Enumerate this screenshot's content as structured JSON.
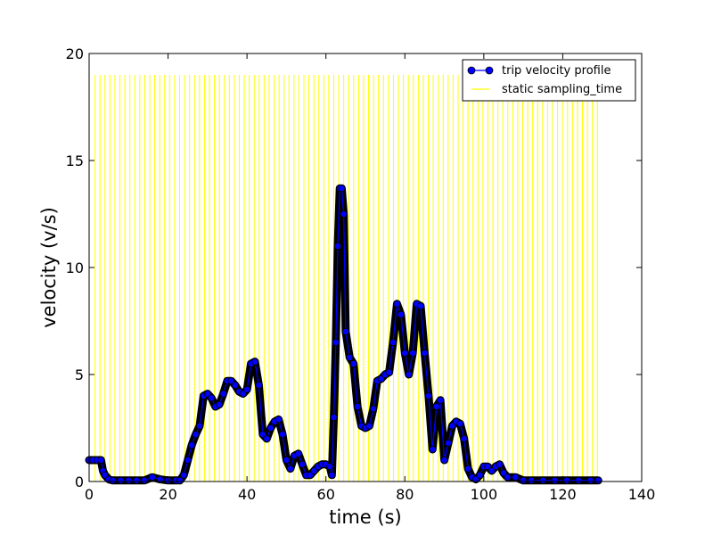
{
  "chart_data": {
    "type": "line",
    "title": "",
    "xlabel": "time (s)",
    "ylabel": "velocity (v/s)",
    "xlim": [
      0,
      140
    ],
    "ylim": [
      0,
      20
    ],
    "xticks": [
      0,
      20,
      40,
      60,
      80,
      100,
      120,
      140
    ],
    "yticks": [
      0,
      5,
      10,
      15,
      20
    ],
    "grid": false,
    "legend_position": "top-right",
    "series": [
      {
        "name": "trip velocity profile",
        "style": "line-with-circle-markers",
        "color": "#0000ff",
        "edge_color": "#000000",
        "points": [
          [
            0,
            1.0
          ],
          [
            1,
            1.0
          ],
          [
            2,
            1.0
          ],
          [
            3,
            1.0
          ],
          [
            3.5,
            0.5
          ],
          [
            4,
            0.3
          ],
          [
            5,
            0.1
          ],
          [
            6,
            0.05
          ],
          [
            8,
            0.05
          ],
          [
            10,
            0.05
          ],
          [
            12,
            0.05
          ],
          [
            14,
            0.05
          ],
          [
            16,
            0.2
          ],
          [
            18,
            0.1
          ],
          [
            20,
            0.05
          ],
          [
            22,
            0.05
          ],
          [
            23,
            0.05
          ],
          [
            24,
            0.3
          ],
          [
            25,
            1.0
          ],
          [
            26,
            1.7
          ],
          [
            27,
            2.2
          ],
          [
            28,
            2.6
          ],
          [
            29,
            4.0
          ],
          [
            30,
            4.1
          ],
          [
            31,
            3.9
          ],
          [
            32,
            3.5
          ],
          [
            33,
            3.6
          ],
          [
            34,
            4.1
          ],
          [
            35,
            4.7
          ],
          [
            36,
            4.7
          ],
          [
            37,
            4.5
          ],
          [
            38,
            4.2
          ],
          [
            39,
            4.1
          ],
          [
            40,
            4.3
          ],
          [
            41,
            5.5
          ],
          [
            42,
            5.6
          ],
          [
            43,
            4.5
          ],
          [
            44,
            2.2
          ],
          [
            45,
            2.0
          ],
          [
            46,
            2.5
          ],
          [
            47,
            2.8
          ],
          [
            48,
            2.9
          ],
          [
            49,
            2.2
          ],
          [
            50,
            1.0
          ],
          [
            51,
            0.6
          ],
          [
            52,
            1.2
          ],
          [
            53,
            1.3
          ],
          [
            54,
            0.8
          ],
          [
            55,
            0.3
          ],
          [
            56,
            0.3
          ],
          [
            57,
            0.5
          ],
          [
            58,
            0.7
          ],
          [
            59,
            0.8
          ],
          [
            60,
            0.8
          ],
          [
            61,
            0.7
          ],
          [
            61.5,
            0.3
          ],
          [
            62,
            3.0
          ],
          [
            62.5,
            6.5
          ],
          [
            63,
            11.0
          ],
          [
            63.5,
            13.7
          ],
          [
            64,
            13.7
          ],
          [
            64.5,
            12.5
          ],
          [
            65,
            7.0
          ],
          [
            66,
            5.8
          ],
          [
            67,
            5.5
          ],
          [
            68,
            3.5
          ],
          [
            69,
            2.6
          ],
          [
            70,
            2.5
          ],
          [
            71,
            2.6
          ],
          [
            72,
            3.4
          ],
          [
            73,
            4.7
          ],
          [
            74,
            4.8
          ],
          [
            75,
            5.0
          ],
          [
            76,
            5.1
          ],
          [
            77,
            6.5
          ],
          [
            78,
            8.3
          ],
          [
            79,
            7.8
          ],
          [
            80,
            6.0
          ],
          [
            81,
            5.0
          ],
          [
            82,
            6.0
          ],
          [
            83,
            8.3
          ],
          [
            84,
            8.2
          ],
          [
            85,
            6.0
          ],
          [
            86,
            4.0
          ],
          [
            87,
            1.5
          ],
          [
            88,
            3.5
          ],
          [
            89,
            3.8
          ],
          [
            90,
            1.0
          ],
          [
            91,
            1.8
          ],
          [
            92,
            2.6
          ],
          [
            93,
            2.8
          ],
          [
            94,
            2.7
          ],
          [
            95,
            2.0
          ],
          [
            96,
            0.6
          ],
          [
            97,
            0.2
          ],
          [
            98,
            0.1
          ],
          [
            99,
            0.3
          ],
          [
            100,
            0.7
          ],
          [
            101,
            0.7
          ],
          [
            102,
            0.5
          ],
          [
            103,
            0.7
          ],
          [
            104,
            0.8
          ],
          [
            105,
            0.4
          ],
          [
            106,
            0.2
          ],
          [
            108,
            0.2
          ],
          [
            110,
            0.05
          ],
          [
            112,
            0.05
          ],
          [
            115,
            0.05
          ],
          [
            118,
            0.05
          ],
          [
            121,
            0.05
          ],
          [
            124,
            0.05
          ],
          [
            127,
            0.05
          ],
          [
            129,
            0.05
          ]
        ]
      },
      {
        "name": "static sampling_time",
        "style": "vertical-lines",
        "color": "#ffff00",
        "x_start": 1.5,
        "x_end": 129,
        "x_step": 1.26,
        "y_value": 19
      }
    ]
  }
}
